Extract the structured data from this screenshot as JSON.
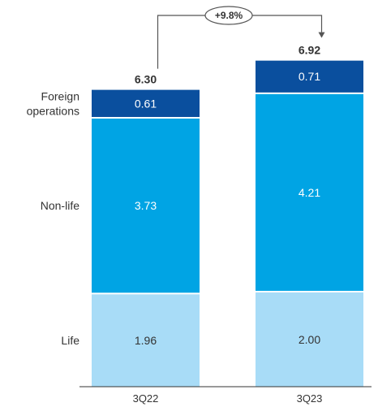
{
  "chart_data": {
    "type": "bar",
    "stacked": true,
    "categories": [
      "3Q22",
      "3Q23"
    ],
    "series": [
      {
        "name": "Life",
        "values": [
          1.96,
          2.0
        ],
        "color": "#a8dcf7",
        "label_color": "#333333"
      },
      {
        "name": "Non-life",
        "values": [
          3.73,
          4.21
        ],
        "color": "#00a4e4",
        "label_color": "#ffffff"
      },
      {
        "name": "Foreign operations",
        "values": [
          0.61,
          0.71
        ],
        "color": "#0a4f9e",
        "label_color": "#ffffff"
      }
    ],
    "value_labels": [
      [
        "1.96",
        "2.00"
      ],
      [
        "3.73",
        "4.21"
      ],
      [
        "0.61",
        "0.71"
      ]
    ],
    "totals": [
      "6.30",
      "6.92"
    ],
    "growth_label": "+9.8%",
    "legend_lines": [
      [
        "Life"
      ],
      [
        "Non-life"
      ],
      [
        "Foreign",
        "operations"
      ]
    ],
    "axis_color": "#333333",
    "connector_color": "#555555"
  }
}
